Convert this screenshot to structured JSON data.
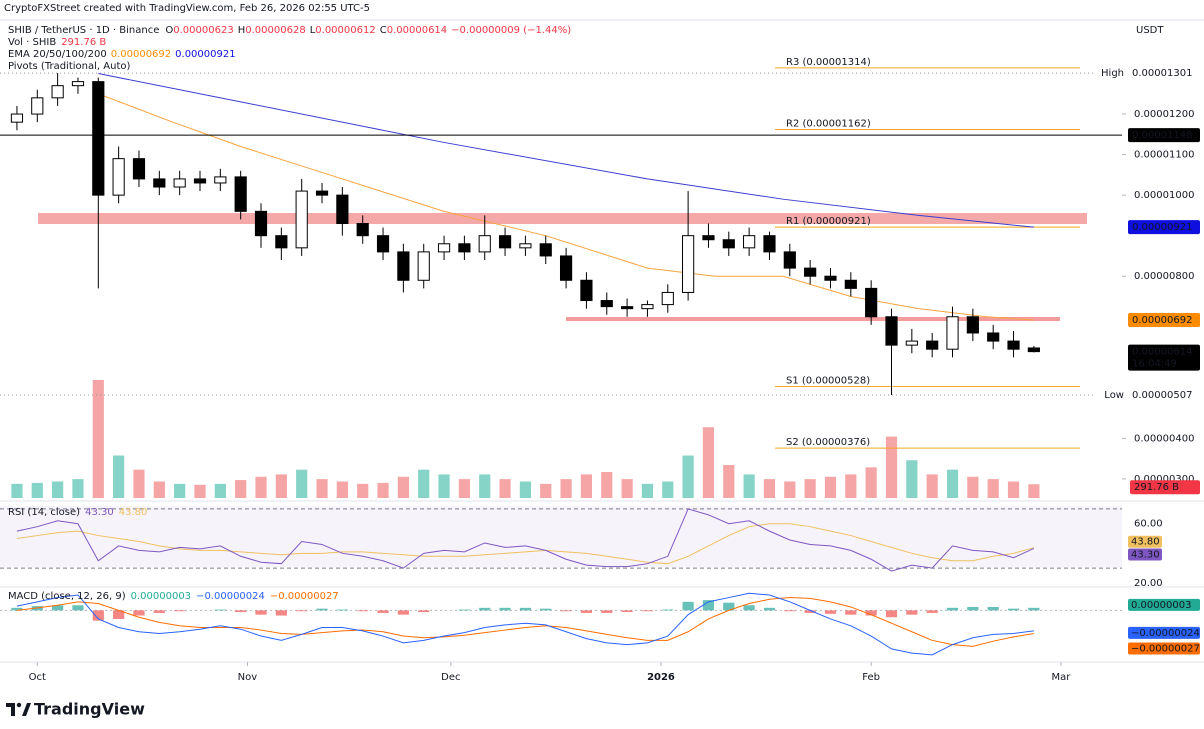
{
  "header": {
    "credit": "CryptoFXStreet created with TradingView.com, Feb 26, 2026 02:55 UTC-5",
    "symbol": "SHIB / TetherUS · 1D · Binance",
    "ohlc": [
      {
        "key": "O",
        "value": "0.00000623"
      },
      {
        "key": "H",
        "value": "0.00000628"
      },
      {
        "key": "L",
        "value": "0.00000612"
      },
      {
        "key": "C",
        "value": "0.00000614"
      }
    ],
    "change": "−0.00000009 (−1.44%)",
    "vol_label": "Vol · SHIB",
    "ema_label": "EMA 20/50/100/200",
    "pivots_label": "Pivots (Traditional, Auto)",
    "currency": "USDT"
  },
  "footer": {
    "brand": "TradingView"
  },
  "chart_data": {
    "type": "candlestick",
    "xlim": [
      -5.5,
      160
    ],
    "xticks": [
      {
        "value": 0,
        "label": "Oct"
      },
      {
        "value": 31,
        "label": "Nov"
      },
      {
        "value": 61,
        "label": "Dec"
      },
      {
        "value": 92,
        "label": "2026"
      },
      {
        "value": 123,
        "label": "Feb"
      },
      {
        "value": 151,
        "label": "Mar"
      }
    ],
    "ylim": [
      2.48e-06,
      1.432e-05
    ],
    "yticks": [
      {
        "value": 1.2e-05,
        "label": "0.00001200"
      },
      {
        "value": 1.1e-05,
        "label": "0.00001100"
      },
      {
        "value": 1e-05,
        "label": "0.00001000"
      },
      {
        "value": 8e-06,
        "label": "0.00000800"
      },
      {
        "value": 4e-06,
        "label": "0.00000400"
      },
      {
        "value": 3e-06,
        "label": "0.00000300"
      }
    ],
    "up_color": "#ffffff",
    "down_color": "#000000",
    "x": [
      -3,
      0,
      3,
      6,
      9,
      12,
      15,
      18,
      21,
      24,
      27,
      30,
      33,
      36,
      39,
      42,
      45,
      48,
      51,
      54,
      57,
      60,
      63,
      66,
      69,
      72,
      75,
      78,
      81,
      84,
      87,
      90,
      93,
      96,
      99,
      102,
      105,
      108,
      111,
      114,
      117,
      120,
      123,
      126,
      129,
      132,
      135,
      138,
      141,
      144,
      147
    ],
    "open": [
      1.18e-05,
      1.2e-05,
      1.24e-05,
      1.27e-05,
      1.28e-05,
      1e-05,
      1.09e-05,
      1.04e-05,
      1.02e-05,
      1.04e-05,
      1.03e-05,
      1.045e-05,
      9.6e-06,
      9e-06,
      8.7e-06,
      1.01e-05,
      1e-05,
      9.3e-06,
      9e-06,
      8.6e-06,
      7.9e-06,
      8.6e-06,
      8.8e-06,
      8.6e-06,
      9e-06,
      8.7e-06,
      8.8e-06,
      8.5e-06,
      7.9e-06,
      7.4e-06,
      7.25e-06,
      7.2e-06,
      7.3e-06,
      7.6e-06,
      9e-06,
      8.9e-06,
      8.7e-06,
      9e-06,
      8.6e-06,
      8.2e-06,
      8e-06,
      7.9e-06,
      7.7e-06,
      7e-06,
      6.3e-06,
      6.4e-06,
      6.2e-06,
      7e-06,
      6.6e-06,
      6.4e-06,
      6.23e-06
    ],
    "high": [
      1.22e-05,
      1.26e-05,
      1.301e-05,
      1.29e-05,
      1.29e-05,
      1.12e-05,
      1.11e-05,
      1.06e-05,
      1.06e-05,
      1.06e-05,
      1.065e-05,
      1.06e-05,
      9.8e-06,
      9.2e-06,
      1.04e-05,
      1.03e-05,
      1.02e-05,
      9.5e-06,
      9.2e-06,
      8.8e-06,
      8.8e-06,
      9e-06,
      9e-06,
      9.5e-06,
      9.2e-06,
      9e-06,
      9e-06,
      8.7e-06,
      8.1e-06,
      7.6e-06,
      7.45e-06,
      7.4e-06,
      7.8e-06,
      1.01e-05,
      9.3e-06,
      9.1e-06,
      9.2e-06,
      9.1e-06,
      8.8e-06,
      8.4e-06,
      8.2e-06,
      8.1e-06,
      7.9e-06,
      7.2e-06,
      6.7e-06,
      6.6e-06,
      7.25e-06,
      7.2e-06,
      6.8e-06,
      6.65e-06,
      6.28e-06
    ],
    "low": [
      1.16e-05,
      1.18e-05,
      1.22e-05,
      1.25e-05,
      7.7e-06,
      9.8e-06,
      1.02e-05,
      1e-05,
      1e-05,
      1.01e-05,
      1.01e-05,
      9.4e-06,
      8.7e-06,
      8.4e-06,
      8.5e-06,
      9.8e-06,
      9e-06,
      8.8e-06,
      8.4e-06,
      7.6e-06,
      7.7e-06,
      8.4e-06,
      8.4e-06,
      8.4e-06,
      8.5e-06,
      8.5e-06,
      8.3e-06,
      7.7e-06,
      7.2e-06,
      7.05e-06,
      7e-06,
      7e-06,
      7.1e-06,
      7.4e-06,
      8.7e-06,
      8.5e-06,
      8.5e-06,
      8.4e-06,
      8e-06,
      7.8e-06,
      7.7e-06,
      7.5e-06,
      6.8e-06,
      5.07e-06,
      6.1e-06,
      6e-06,
      6e-06,
      6.4e-06,
      6.2e-06,
      6e-06,
      6.12e-06
    ],
    "close": [
      1.2e-05,
      1.24e-05,
      1.27e-05,
      1.28e-05,
      1e-05,
      1.09e-05,
      1.04e-05,
      1.02e-05,
      1.04e-05,
      1.03e-05,
      1.045e-05,
      9.6e-06,
      9e-06,
      8.7e-06,
      1.01e-05,
      1e-05,
      9.3e-06,
      9e-06,
      8.6e-06,
      7.9e-06,
      8.6e-06,
      8.8e-06,
      8.6e-06,
      9e-06,
      8.7e-06,
      8.8e-06,
      8.5e-06,
      7.9e-06,
      7.4e-06,
      7.25e-06,
      7.2e-06,
      7.3e-06,
      7.6e-06,
      9e-06,
      8.9e-06,
      8.7e-06,
      9e-06,
      8.6e-06,
      8.2e-06,
      8e-06,
      7.9e-06,
      7.7e-06,
      7e-06,
      6.3e-06,
      6.4e-06,
      6.2e-06,
      7e-06,
      6.6e-06,
      6.4e-06,
      6.2e-06,
      6.14e-06
    ],
    "ema": [
      {
        "color": "#f7a440",
        "x": [
          9,
          20,
          30,
          45,
          60,
          75,
          90,
          100,
          110,
          120,
          130,
          140,
          147
        ],
        "values": [
          1.25e-05,
          1.18e-05,
          1.12e-05,
          1.04e-05,
          9.6e-06,
          9e-06,
          8.2e-06,
          8e-06,
          8e-06,
          7.5e-06,
          7.2e-06,
          7e-06,
          6.92e-06
        ]
      },
      {
        "color": "#3d3dd1",
        "x": [
          9,
          30,
          60,
          90,
          110,
          130,
          147
        ],
        "values": [
          1.3e-05,
          1.23e-05,
          1.13e-05,
          1.04e-05,
          9.9e-06,
          9.5e-06,
          9.21e-06
        ]
      }
    ],
    "pivots": {
      "color": "#f5a623",
      "levels": [
        {
          "value": 1.314e-05,
          "label": "R3 (0.00001314)"
        },
        {
          "value": 1.162e-05,
          "label": "R2 (0.00001162)"
        },
        {
          "value": 9.21e-06,
          "label": "R1 (0.00000921)"
        },
        {
          "value": 5.28e-06,
          "label": "S1 (0.00000528)"
        },
        {
          "value": 3.76e-06,
          "label": "S2 (0.00000376)"
        }
      ]
    },
    "price_tags": [
      {
        "value": 1.301e-05,
        "label": "0.00001301",
        "caption": "High",
        "color": "#ffffff",
        "text_color": "#131722",
        "dotted": true
      },
      {
        "value": 1.148e-05,
        "label": "0.00001148",
        "color": "#000000",
        "text_color": "#ffffff",
        "line": true
      },
      {
        "value": 9.21e-06,
        "label": "0.00000921",
        "color": "#0f0fe0",
        "text_color": "#ffffff"
      },
      {
        "value": 6.92e-06,
        "label": "0.00000692",
        "color": "#ff8c00",
        "text_color": "#ffffff"
      },
      {
        "value": 6.14e-06,
        "label": "0.00000614",
        "sub": "16:04:49",
        "color": "#000000",
        "text_color": "#ffffff"
      },
      {
        "value": 5.07e-06,
        "label": "0.00000507",
        "caption": "Low",
        "color": "#ffffff",
        "text_color": "#131722",
        "dotted": true
      }
    ],
    "volume": {
      "up_color": "#85d4c7",
      "down_color": "#f5a5a5",
      "label_color": "#f23645",
      "last_label": "291.76 B",
      "values": [
        300,
        320,
        350,
        400,
        2500,
        900,
        600,
        350,
        300,
        280,
        300,
        380,
        450,
        500,
        600,
        400,
        350,
        300,
        320,
        450,
        600,
        500,
        400,
        500,
        400,
        350,
        300,
        400,
        500,
        550,
        400,
        300,
        350,
        900,
        1500,
        700,
        500,
        400,
        350,
        400,
        450,
        500,
        650,
        1300,
        800,
        500,
        600,
        450,
        400,
        350,
        291.76
      ]
    },
    "rsi": {
      "title": "RSI (14, close)",
      "ylim": [
        18.6,
        74
      ],
      "yticks": [
        {
          "value": 60,
          "label": "60.00"
        },
        {
          "value": 20,
          "label": "20.00"
        }
      ],
      "bands": [
        70,
        30
      ],
      "color": "#7e57c2",
      "ma_color": "#f0c060",
      "values": [
        55,
        58,
        62,
        60,
        35,
        45,
        42,
        41,
        44,
        43,
        45,
        38,
        34,
        33,
        48,
        46,
        40,
        38,
        35,
        30,
        40,
        42,
        41,
        47,
        44,
        45,
        42,
        36,
        32,
        31,
        31,
        33,
        38,
        70,
        66,
        60,
        62,
        55,
        49,
        46,
        45,
        42,
        36,
        28,
        32,
        30,
        45,
        42,
        41,
        37,
        43.3
      ],
      "ma": [
        50,
        52,
        54,
        55,
        52,
        50,
        48,
        45,
        43,
        42,
        42,
        41,
        40,
        39,
        40,
        40,
        41,
        41,
        40,
        39,
        38,
        38,
        38,
        39,
        40,
        41,
        42,
        41,
        40,
        38,
        36,
        34,
        33,
        38,
        45,
        52,
        58,
        60,
        60,
        58,
        55,
        52,
        48,
        44,
        40,
        37,
        35,
        35,
        38,
        40,
        43.8
      ],
      "tags": [
        {
          "value": 43.8,
          "label": "43.80",
          "color": "#f0c060"
        },
        {
          "value": 43.3,
          "label": "43.30",
          "color": "#7e57c2"
        }
      ]
    },
    "macd": {
      "title": "MACD (close, 12, 26, 9)",
      "ylim": [
        -5.8e-07,
        2.5e-07
      ],
      "line_color": "#2962ff",
      "signal_color": "#ff6d00",
      "up_color": "#26a69a",
      "down_color": "#ef5350",
      "hist": [
        3e-08,
        5e-08,
        6e-08,
        6e-08,
        -1.2e-07,
        -1e-07,
        -6e-08,
        -3e-08,
        -1e-08,
        0,
        1e-08,
        -2e-08,
        -5e-08,
        -6e-08,
        -1e-08,
        2e-08,
        1e-08,
        -1e-08,
        -3e-08,
        -5e-08,
        -2e-08,
        0,
        1e-08,
        3e-08,
        3e-08,
        3e-08,
        2e-08,
        -1e-08,
        -3e-08,
        -3e-08,
        -2e-08,
        -1e-08,
        1e-08,
        1e-07,
        1.2e-07,
        9e-08,
        6e-08,
        3e-08,
        -1e-08,
        -3e-08,
        -4e-08,
        -5e-08,
        -6e-08,
        -8e-08,
        -5e-08,
        -3e-08,
        3e-08,
        4e-08,
        4e-08,
        2e-08,
        3e-08
      ],
      "line": [
        5e-08,
        1e-07,
        1.5e-07,
        1.8e-07,
        -1e-07,
        -2e-07,
        -2.5e-07,
        -2.7e-07,
        -2.5e-07,
        -2.2e-07,
        -1.8e-07,
        -2.2e-07,
        -3e-07,
        -3.5e-07,
        -2.8e-07,
        -2e-07,
        -2e-07,
        -2.4e-07,
        -3e-07,
        -3.8e-07,
        -3.5e-07,
        -3e-07,
        -2.6e-07,
        -2e-07,
        -1.7e-07,
        -1.5e-07,
        -1.7e-07,
        -2.5e-07,
        -3.3e-07,
        -3.8e-07,
        -4e-07,
        -3.8e-07,
        -3e-07,
        -5e-08,
        1e-07,
        1.5e-07,
        2e-07,
        1.8e-07,
        1e-07,
        0,
        -1e-07,
        -1.8e-07,
        -3e-07,
        -4.5e-07,
        -5e-07,
        -5.2e-07,
        -4e-07,
        -3.2e-07,
        -2.8e-07,
        -2.7e-07,
        -2.4e-07
      ],
      "signal": [
        0,
        3e-08,
        6e-08,
        1e-07,
        8e-08,
        0,
        -8e-08,
        -1.4e-07,
        -1.8e-07,
        -2e-07,
        -2e-07,
        -2e-07,
        -2.3e-07,
        -2.7e-07,
        -2.8e-07,
        -2.6e-07,
        -2.4e-07,
        -2.3e-07,
        -2.5e-07,
        -3e-07,
        -3.2e-07,
        -3.1e-07,
        -2.9e-07,
        -2.6e-07,
        -2.3e-07,
        -2e-07,
        -1.8e-07,
        -2e-07,
        -2.4e-07,
        -2.8e-07,
        -3.2e-07,
        -3.5e-07,
        -3.5e-07,
        -2.5e-07,
        -1e-07,
        0,
        8e-08,
        1.3e-07,
        1.5e-07,
        1.4e-07,
        1e-07,
        4e-08,
        -5e-08,
        -1.5e-07,
        -2.5e-07,
        -3.5e-07,
        -4e-07,
        -4.2e-07,
        -3.6e-07,
        -3.1e-07,
        -2.7e-07
      ],
      "tags": [
        {
          "value": 3e-08,
          "label": "0.00000003",
          "color": "#22ab94"
        },
        {
          "value": -2.4e-07,
          "label": "−0.00000024",
          "color": "#2962ff"
        },
        {
          "value": -2.7e-07,
          "label": "−0.00000027",
          "color": "#ff6d00"
        }
      ]
    }
  }
}
